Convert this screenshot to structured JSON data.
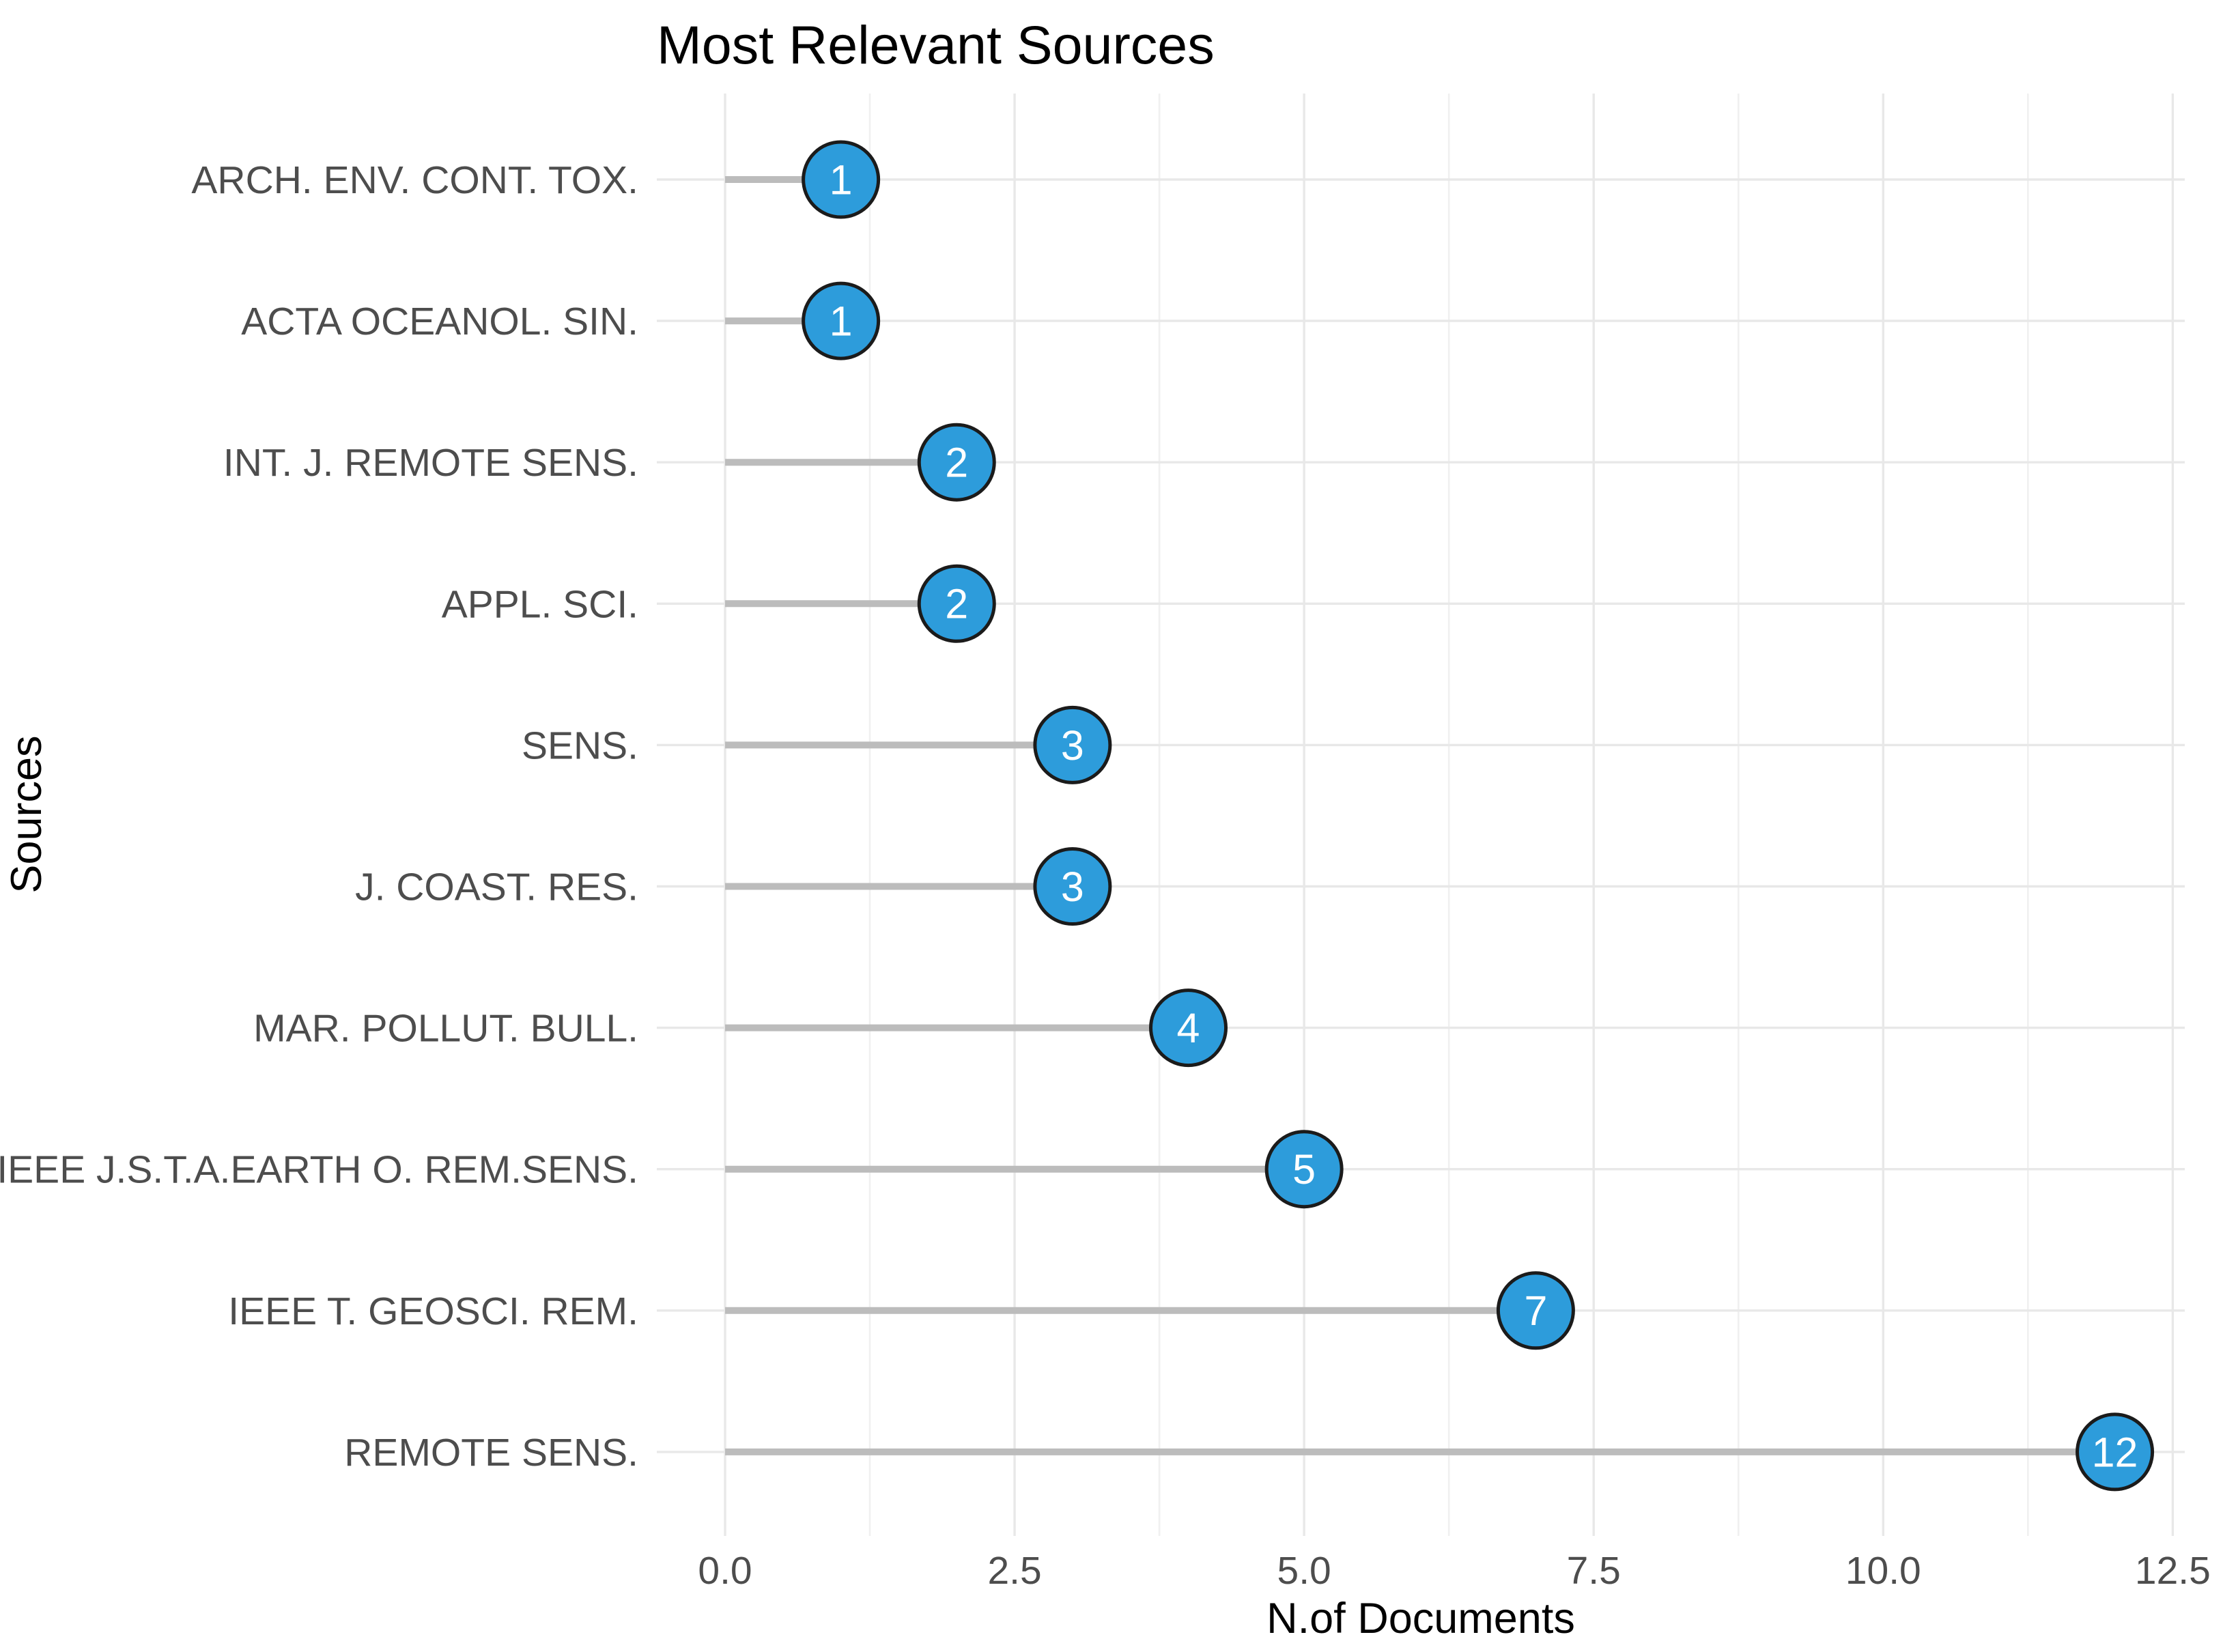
{
  "title": "Most Relevant Sources",
  "chart_data": {
    "type": "bar",
    "variant": "horizontal-lollipop",
    "title": "Most Relevant Sources",
    "xlabel": "N.of Documents",
    "ylabel": "Sources",
    "orientation": "horizontal",
    "legend": "none",
    "grid": "vertical major+minor, horizontal major, no axis lines, no tick marks",
    "categories": [
      "ARCH. ENV. CONT. TOX.",
      "ACTA OCEANOL. SIN.",
      "INT. J. REMOTE SENS.",
      "APPL. SCI.",
      "SENS.",
      "J. COAST. RES.",
      "MAR. POLLUT. BULL.",
      "IEEE J.S.T.A.EARTH O. REM.SENS.",
      "IEEE T. GEOSCI. REM.",
      "REMOTE SENS."
    ],
    "values": [
      1,
      1,
      2,
      2,
      3,
      3,
      4,
      5,
      7,
      12
    ],
    "xlim": [
      0,
      12.5
    ],
    "x_major_ticks": [
      0,
      2.5,
      5,
      7.5,
      10,
      12.5
    ],
    "x_tick_labels": [
      "0.0",
      "2.5",
      "5.0",
      "7.5",
      "10.0",
      "12.5"
    ],
    "x_minor_ticks": [
      1.25,
      3.75,
      6.25,
      8.75,
      11.25
    ],
    "colors": {
      "background": "#FFFFFF",
      "point_fill": "#2D9CDB",
      "point_border": "#1B1B1B",
      "point_label": "#FFFFFF",
      "stem": "#BCBCBC",
      "grid_major": "#E8E8E8",
      "grid_minor": "#F0F0F0",
      "axis_text": "#4D4D4D",
      "title_text": "#000000",
      "axis_title_text": "#000000"
    }
  }
}
